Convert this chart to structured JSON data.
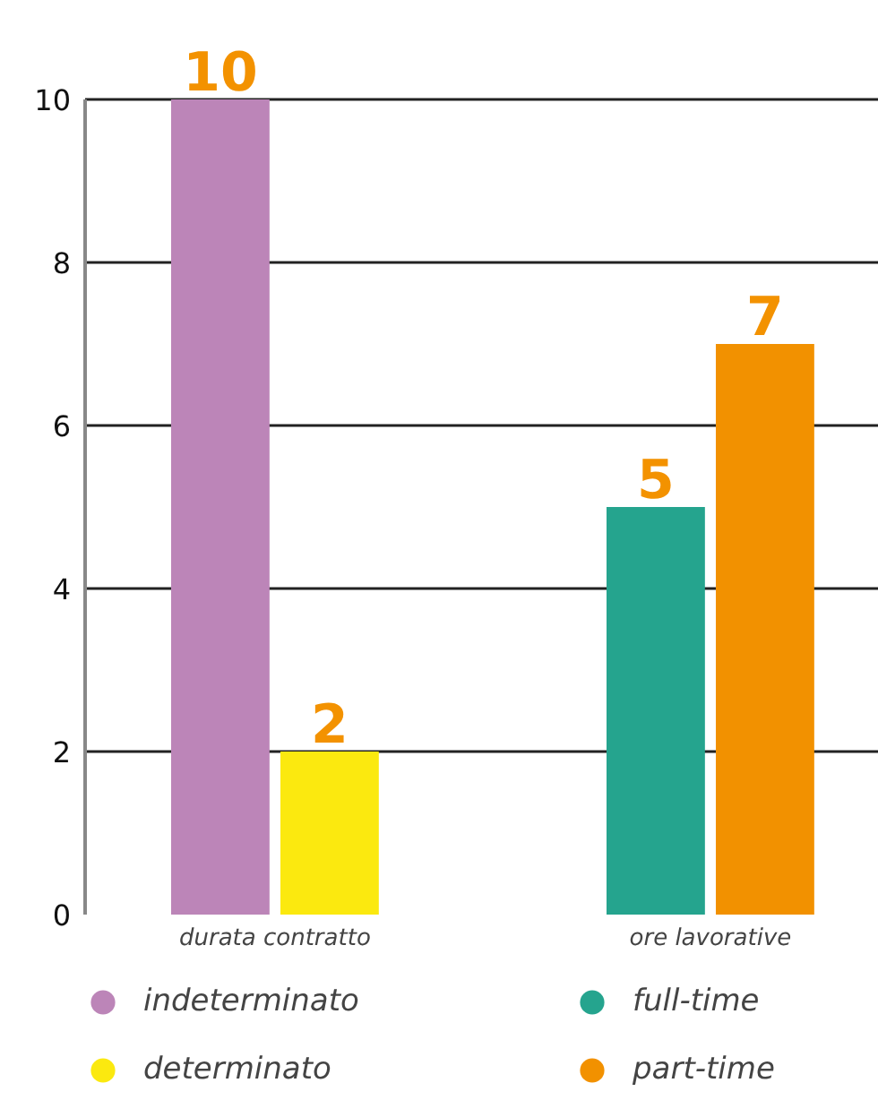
{
  "chart_data": {
    "type": "bar",
    "categories": [
      "durata contratto",
      "ore lavorative"
    ],
    "series": [
      {
        "name": "indeterminato",
        "color": "#bc85b8",
        "values": [
          10,
          null
        ]
      },
      {
        "name": "determinato",
        "color": "#fbe90f",
        "values": [
          2,
          null
        ]
      },
      {
        "name": "full-time",
        "color": "#25a48e",
        "values": [
          null,
          5
        ]
      },
      {
        "name": "part-time",
        "color": "#f29100",
        "values": [
          null,
          7
        ]
      }
    ],
    "ylim": [
      0,
      10
    ],
    "yticks": [
      0,
      2,
      4,
      6,
      8,
      10
    ],
    "grid": "y",
    "legend": "bottom",
    "marker": "circle",
    "data_labels": true
  }
}
